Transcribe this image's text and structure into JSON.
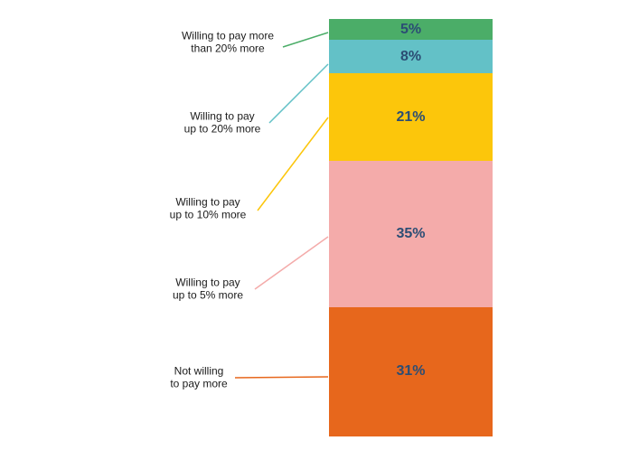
{
  "page": {
    "background": "#ffffff"
  },
  "chart_data": {
    "type": "bar",
    "subtype": "single-stacked-column",
    "orientation": "vertical",
    "title": "",
    "xlabel": "",
    "ylabel": "",
    "legend": "none",
    "axes": "none",
    "grid": false,
    "total": 100,
    "categories": [
      "Willing to pay more\nthan 20% more",
      "Willing to pay\nup to 20% more",
      "Willing to pay\nup to 10% more",
      "Willing to pay\nup to 5% more",
      "Not willing\nto pay more"
    ],
    "values": [
      5,
      8,
      21,
      35,
      31
    ],
    "value_labels": [
      "5%",
      "8%",
      "21%",
      "35%",
      "31%"
    ],
    "colors": [
      "#4bad68",
      "#63c1c7",
      "#fcc60b",
      "#f4abaa",
      "#e7671c"
    ],
    "value_label_color": "#2b4d74",
    "category_label_color": "#1b1b1b"
  }
}
